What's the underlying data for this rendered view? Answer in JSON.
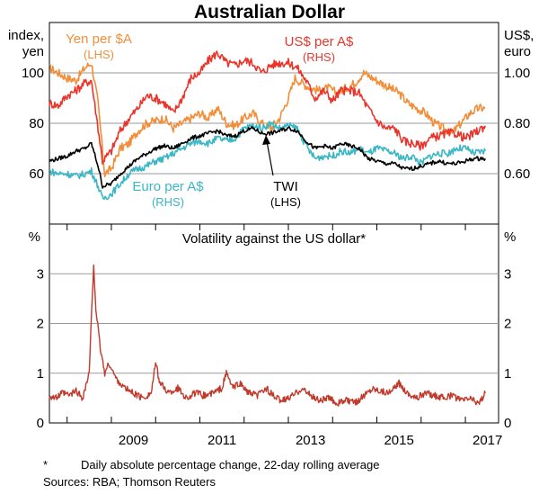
{
  "chart_data": [
    {
      "type": "line",
      "title": "Australian Dollar",
      "left_unit": [
        "index,",
        "yen"
      ],
      "right_unit": [
        "US$,",
        "euro"
      ],
      "left_axis": {
        "ylim": [
          40,
          120
        ],
        "ticks": [
          60,
          80,
          100
        ],
        "tick_labels": [
          "60",
          "80",
          "100"
        ]
      },
      "right_axis": {
        "ylim": [
          0.4,
          1.2
        ],
        "ticks": [
          0.6,
          0.8,
          1.0
        ],
        "tick_labels": [
          "0.60",
          "0.80",
          "1.00"
        ]
      },
      "xlim": [
        2007.6,
        2017.75
      ],
      "x_ticks": [
        2009,
        2011,
        2013,
        2015,
        2017
      ],
      "x_tick_labels": [
        "2009",
        "2011",
        "2013",
        "2015",
        "2017"
      ],
      "series": [
        {
          "name": "Yen per $A",
          "axis": "LHS",
          "legend": "Yen per $A",
          "legend_sub": "(LHS)",
          "color": "#f28e3a",
          "x": [
            2007.6,
            2007.8,
            2008.0,
            2008.2,
            2008.4,
            2008.55,
            2008.7,
            2008.85,
            2009.0,
            2009.2,
            2009.4,
            2009.6,
            2009.8,
            2010.0,
            2010.2,
            2010.4,
            2010.6,
            2010.8,
            2011.0,
            2011.2,
            2011.4,
            2011.6,
            2011.8,
            2012.0,
            2012.2,
            2012.4,
            2012.6,
            2012.8,
            2013.0,
            2013.15,
            2013.3,
            2013.5,
            2013.7,
            2013.9,
            2014.1,
            2014.3,
            2014.5,
            2014.7,
            2014.9,
            2015.1,
            2015.3,
            2015.5,
            2015.7,
            2015.9,
            2016.1,
            2016.3,
            2016.5,
            2016.7,
            2016.9,
            2017.1,
            2017.3,
            2017.45
          ],
          "values": [
            102,
            100,
            98,
            97,
            102,
            104,
            88,
            60,
            62,
            70,
            72,
            77,
            80,
            81,
            82,
            78,
            80,
            82,
            84,
            82,
            86,
            80,
            79,
            82,
            84,
            80,
            78,
            82,
            90,
            98,
            96,
            94,
            93,
            94,
            92,
            94,
            96,
            100,
            98,
            96,
            94,
            92,
            88,
            86,
            84,
            80,
            78,
            76,
            80,
            84,
            86,
            86
          ]
        },
        {
          "name": "US$ per A$",
          "axis": "RHS",
          "legend": "US$ per A$",
          "legend_sub": "(RHS)",
          "color": "#e8362c",
          "x": [
            2007.6,
            2007.8,
            2008.0,
            2008.2,
            2008.4,
            2008.55,
            2008.7,
            2008.8,
            2009.0,
            2009.2,
            2009.4,
            2009.6,
            2009.8,
            2010.0,
            2010.2,
            2010.4,
            2010.6,
            2010.8,
            2011.0,
            2011.2,
            2011.4,
            2011.6,
            2011.8,
            2012.0,
            2012.2,
            2012.4,
            2012.6,
            2012.8,
            2013.0,
            2013.2,
            2013.4,
            2013.6,
            2013.8,
            2014.0,
            2014.2,
            2014.4,
            2014.6,
            2014.8,
            2015.0,
            2015.2,
            2015.4,
            2015.6,
            2015.8,
            2016.0,
            2016.2,
            2016.4,
            2016.6,
            2016.8,
            2017.0,
            2017.2,
            2017.45
          ],
          "values": [
            0.88,
            0.87,
            0.91,
            0.93,
            0.96,
            0.97,
            0.78,
            0.65,
            0.69,
            0.77,
            0.82,
            0.86,
            0.91,
            0.9,
            0.88,
            0.84,
            0.9,
            0.98,
            1.0,
            1.05,
            1.08,
            1.04,
            1.03,
            1.05,
            1.04,
            1.0,
            1.03,
            1.04,
            1.04,
            1.02,
            0.97,
            0.9,
            0.93,
            0.89,
            0.93,
            0.93,
            0.92,
            0.86,
            0.81,
            0.78,
            0.78,
            0.73,
            0.72,
            0.71,
            0.74,
            0.75,
            0.76,
            0.76,
            0.74,
            0.76,
            0.79
          ]
        },
        {
          "name": "TWI",
          "axis": "LHS",
          "legend": "TWI",
          "legend_sub": "(LHS)",
          "color": "#000000",
          "x": [
            2007.6,
            2007.8,
            2008.0,
            2008.2,
            2008.4,
            2008.55,
            2008.7,
            2008.8,
            2009.0,
            2009.2,
            2009.4,
            2009.6,
            2009.8,
            2010.0,
            2010.2,
            2010.4,
            2010.6,
            2010.8,
            2011.0,
            2011.2,
            2011.4,
            2011.6,
            2011.8,
            2012.0,
            2012.2,
            2012.4,
            2012.6,
            2012.8,
            2013.0,
            2013.2,
            2013.4,
            2013.6,
            2013.8,
            2014.0,
            2014.2,
            2014.4,
            2014.6,
            2014.8,
            2015.0,
            2015.2,
            2015.4,
            2015.6,
            2015.8,
            2016.0,
            2016.2,
            2016.4,
            2016.6,
            2016.8,
            2017.0,
            2017.2,
            2017.45
          ],
          "values": [
            65,
            66,
            67,
            69,
            70,
            72,
            63,
            55,
            56,
            60,
            63,
            66,
            68,
            70,
            71,
            70,
            72,
            74,
            75,
            76,
            77,
            75,
            75,
            77,
            78,
            76,
            76,
            77,
            78,
            77,
            73,
            70,
            71,
            70,
            72,
            71,
            70,
            66,
            65,
            64,
            64,
            62,
            62,
            63,
            64,
            65,
            64,
            64,
            65,
            66,
            66
          ]
        },
        {
          "name": "Euro per A$",
          "axis": "RHS",
          "legend": "Euro per A$",
          "legend_sub": "(RHS)",
          "color": "#3bb6c4",
          "x": [
            2007.6,
            2007.8,
            2008.0,
            2008.2,
            2008.4,
            2008.55,
            2008.7,
            2008.8,
            2009.0,
            2009.2,
            2009.4,
            2009.6,
            2009.8,
            2010.0,
            2010.2,
            2010.4,
            2010.6,
            2010.8,
            2011.0,
            2011.2,
            2011.4,
            2011.6,
            2011.8,
            2012.0,
            2012.2,
            2012.4,
            2012.6,
            2012.8,
            2013.0,
            2013.2,
            2013.4,
            2013.6,
            2013.8,
            2014.0,
            2014.2,
            2014.4,
            2014.6,
            2014.8,
            2015.0,
            2015.2,
            2015.4,
            2015.6,
            2015.8,
            2016.0,
            2016.2,
            2016.4,
            2016.6,
            2016.8,
            2017.0,
            2017.2,
            2017.45
          ],
          "values": [
            0.61,
            0.6,
            0.6,
            0.59,
            0.6,
            0.61,
            0.55,
            0.5,
            0.52,
            0.56,
            0.6,
            0.62,
            0.63,
            0.65,
            0.66,
            0.68,
            0.7,
            0.72,
            0.73,
            0.72,
            0.74,
            0.73,
            0.74,
            0.78,
            0.79,
            0.78,
            0.8,
            0.78,
            0.79,
            0.78,
            0.71,
            0.66,
            0.67,
            0.67,
            0.69,
            0.68,
            0.7,
            0.68,
            0.7,
            0.69,
            0.68,
            0.66,
            0.67,
            0.64,
            0.67,
            0.68,
            0.68,
            0.7,
            0.7,
            0.68,
            0.69
          ]
        }
      ],
      "annotations": [
        {
          "text": "TWI",
          "sub": "(LHS)",
          "arrow": true
        }
      ]
    },
    {
      "type": "line",
      "title": "Volatility against the US dollar*",
      "left_unit": [
        "%"
      ],
      "right_unit": [
        "%"
      ],
      "ylim": [
        0,
        4
      ],
      "y_ticks": [
        0,
        1,
        2,
        3
      ],
      "y_tick_labels": [
        "0",
        "1",
        "2",
        "3"
      ],
      "xlim": [
        2007.6,
        2017.75
      ],
      "series": [
        {
          "name": "Volatility against the US dollar",
          "color": "#c0392b",
          "x": [
            2007.6,
            2007.75,
            2007.9,
            2008.05,
            2008.2,
            2008.35,
            2008.5,
            2008.6,
            2008.65,
            2008.75,
            2008.85,
            2008.95,
            2009.1,
            2009.3,
            2009.5,
            2009.7,
            2009.9,
            2010.0,
            2010.1,
            2010.3,
            2010.5,
            2010.7,
            2010.9,
            2011.1,
            2011.3,
            2011.5,
            2011.6,
            2011.75,
            2011.9,
            2012.1,
            2012.3,
            2012.5,
            2012.7,
            2012.9,
            2013.1,
            2013.3,
            2013.5,
            2013.7,
            2013.9,
            2014.1,
            2014.3,
            2014.5,
            2014.7,
            2014.9,
            2015.1,
            2015.3,
            2015.5,
            2015.7,
            2015.9,
            2016.1,
            2016.3,
            2016.5,
            2016.7,
            2016.9,
            2017.1,
            2017.3,
            2017.45
          ],
          "values": [
            0.55,
            0.5,
            0.6,
            0.55,
            0.65,
            0.5,
            1.0,
            3.2,
            2.3,
            1.5,
            1.0,
            1.2,
            0.9,
            0.7,
            0.6,
            0.5,
            0.6,
            1.2,
            0.8,
            0.6,
            0.7,
            0.5,
            0.6,
            0.55,
            0.6,
            0.7,
            1.0,
            0.7,
            0.8,
            0.6,
            0.55,
            0.7,
            0.5,
            0.45,
            0.55,
            0.7,
            0.55,
            0.45,
            0.5,
            0.4,
            0.45,
            0.4,
            0.55,
            0.7,
            0.65,
            0.6,
            0.8,
            0.6,
            0.5,
            0.6,
            0.55,
            0.5,
            0.55,
            0.45,
            0.5,
            0.4,
            0.6
          ]
        }
      ]
    }
  ],
  "x_tick_labels": [
    "2009",
    "2011",
    "2013",
    "2015",
    "2017"
  ],
  "footnotes": {
    "star": "*",
    "note": "Daily absolute percentage change, 22-day rolling average",
    "sources": "Sources: RBA; Thomson Reuters"
  }
}
